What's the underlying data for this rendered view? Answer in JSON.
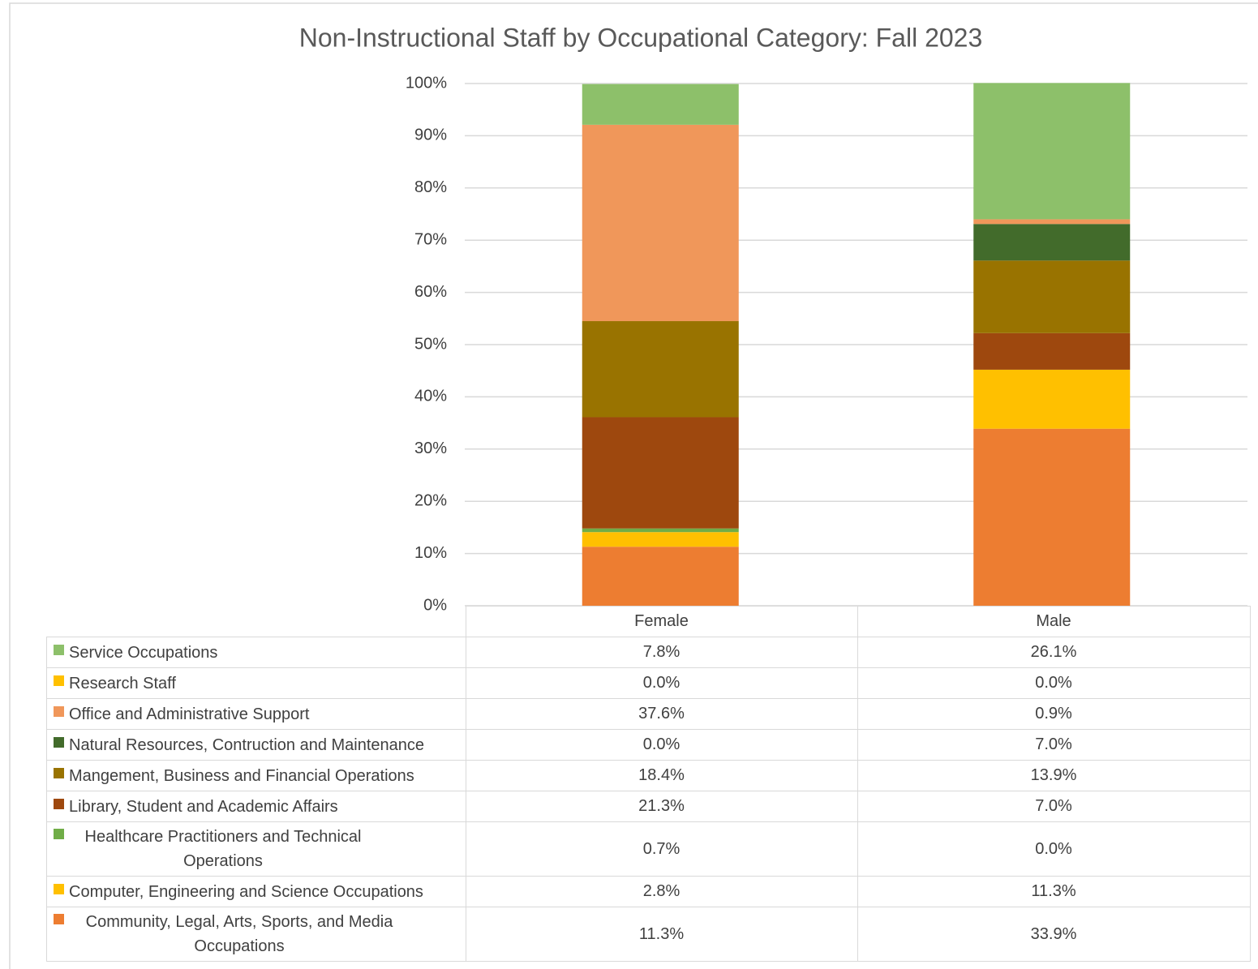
{
  "chart_data": {
    "type": "stacked_bar",
    "title": "Non-Instructional Staff by Occupational Category: Fall 2023",
    "categories": [
      "Female",
      "Male"
    ],
    "series": [
      {
        "name": "Service Occupations",
        "color": "#8dc06a",
        "values": [
          7.8,
          26.1
        ],
        "value_labels": [
          "7.8%",
          "26.1%"
        ]
      },
      {
        "name": "Research Staff",
        "color": "#ffc000",
        "values": [
          0.0,
          0.0
        ],
        "value_labels": [
          "0.0%",
          "0.0%"
        ]
      },
      {
        "name": "Office and Administrative Support",
        "color": "#f0975a",
        "values": [
          37.6,
          0.9
        ],
        "value_labels": [
          "37.6%",
          "0.9%"
        ]
      },
      {
        "name": "Natural Resources, Contruction and Maintenance",
        "color": "#426b2b",
        "values": [
          0.0,
          7.0
        ],
        "value_labels": [
          "0.0%",
          "7.0%"
        ]
      },
      {
        "name": "Mangement, Business and Financial Operations",
        "color": "#997300",
        "values": [
          18.4,
          13.9
        ],
        "value_labels": [
          "18.4%",
          "13.9%"
        ]
      },
      {
        "name": "Library, Student and Academic Affairs",
        "color": "#9e480e",
        "values": [
          21.3,
          7.0
        ],
        "value_labels": [
          "21.3%",
          "7.0%"
        ]
      },
      {
        "name": "Healthcare Practitioners and Technical Operations",
        "color": "#70ad47",
        "values": [
          0.7,
          0.0
        ],
        "value_labels": [
          "0.7%",
          "0.0%"
        ]
      },
      {
        "name": "Computer, Engineering and Science Occupations",
        "color": "#ffc000",
        "values": [
          2.8,
          11.3
        ],
        "value_labels": [
          "2.8%",
          "11.3%"
        ]
      },
      {
        "name": "Community, Legal, Arts, Sports, and Media Occupations",
        "color": "#ed7d31",
        "values": [
          11.3,
          33.9
        ],
        "value_labels": [
          "11.3%",
          "33.9%"
        ]
      }
    ],
    "ylim": [
      0,
      100
    ],
    "yticks": [
      {
        "value": 0,
        "label": "0%"
      },
      {
        "value": 10,
        "label": "10%"
      },
      {
        "value": 20,
        "label": "20%"
      },
      {
        "value": 30,
        "label": "30%"
      },
      {
        "value": 40,
        "label": "40%"
      },
      {
        "value": 50,
        "label": "50%"
      },
      {
        "value": 60,
        "label": "60%"
      },
      {
        "value": 70,
        "label": "70%"
      },
      {
        "value": 80,
        "label": "80%"
      },
      {
        "value": 90,
        "label": "90%"
      },
      {
        "value": 100,
        "label": "100%"
      }
    ],
    "grid": true,
    "legend": "table"
  }
}
